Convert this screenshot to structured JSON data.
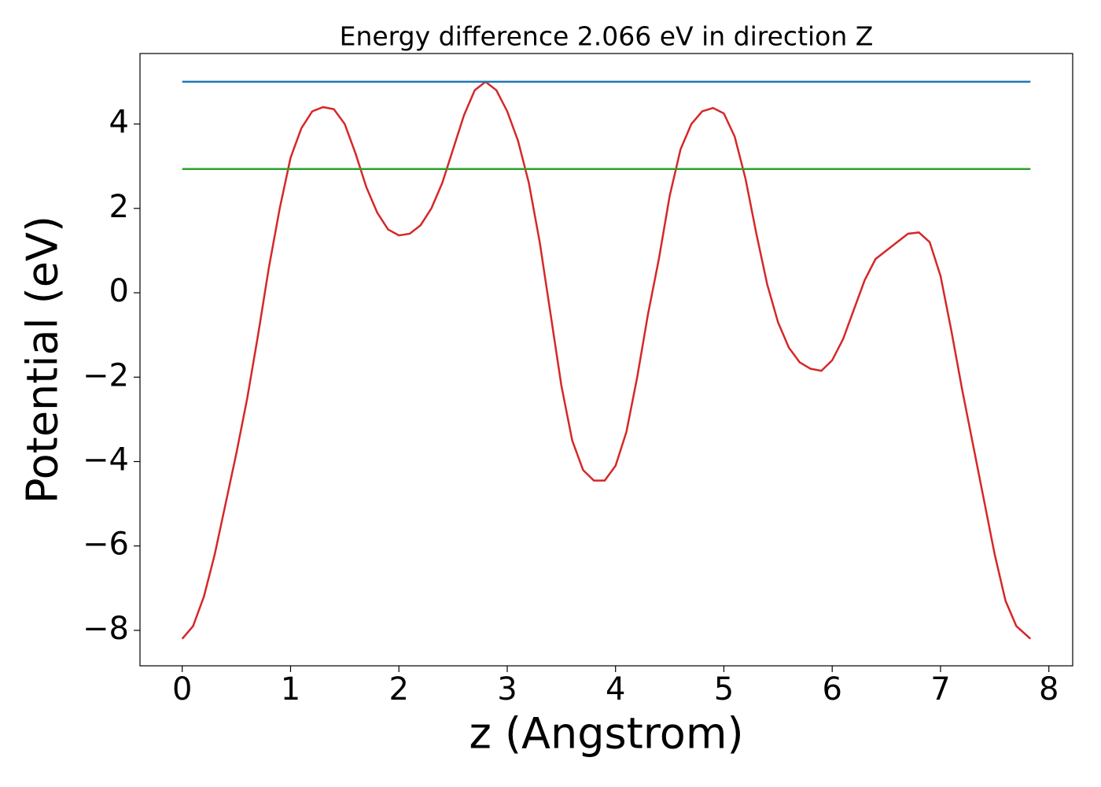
{
  "chart_data": {
    "type": "line",
    "title": "Energy difference 2.066 eV in direction Z",
    "xlabel": "z (Angstrom)",
    "ylabel": "Potential (eV)",
    "xlim": [
      -0.39,
      8.22
    ],
    "ylim": [
      -8.84,
      5.67
    ],
    "xticks": [
      0,
      1,
      2,
      3,
      4,
      5,
      6,
      7,
      8
    ],
    "yticks": [
      {
        "value": -8,
        "label": "−8"
      },
      {
        "value": -6,
        "label": "−6"
      },
      {
        "value": -4,
        "label": "−4"
      },
      {
        "value": -2,
        "label": "−2"
      },
      0,
      2,
      4
    ],
    "series": [
      {
        "color": "#d62728",
        "x": [
          0,
          0.1,
          0.2,
          0.3,
          0.4,
          0.5,
          0.6,
          0.7,
          0.8,
          0.9,
          1.0,
          1.1,
          1.2,
          1.3,
          1.4,
          1.5,
          1.6,
          1.7,
          1.8,
          1.9,
          2.0,
          2.1,
          2.2,
          2.3,
          2.4,
          2.5,
          2.6,
          2.7,
          2.8,
          2.9,
          3.0,
          3.1,
          3.2,
          3.3,
          3.4,
          3.5,
          3.6,
          3.7,
          3.8,
          3.9,
          4.0,
          4.1,
          4.2,
          4.3,
          4.4,
          4.5,
          4.6,
          4.7,
          4.8,
          4.9,
          5.0,
          5.1,
          5.2,
          5.3,
          5.4,
          5.5,
          5.6,
          5.7,
          5.8,
          5.9,
          6.0,
          6.1,
          6.2,
          6.3,
          6.4,
          6.5,
          6.6,
          6.7,
          6.8,
          6.9,
          7.0,
          7.1,
          7.2,
          7.3,
          7.4,
          7.5,
          7.6,
          7.7,
          7.83
        ],
        "values": [
          -8.2,
          -7.9,
          -7.2,
          -6.2,
          -5.0,
          -3.8,
          -2.5,
          -1.0,
          0.6,
          2.0,
          3.2,
          3.9,
          4.3,
          4.4,
          4.35,
          4.0,
          3.3,
          2.5,
          1.9,
          1.5,
          1.36,
          1.4,
          1.6,
          2.0,
          2.6,
          3.4,
          4.2,
          4.8,
          5.0,
          4.8,
          4.3,
          3.6,
          2.6,
          1.2,
          -0.5,
          -2.2,
          -3.5,
          -4.2,
          -4.45,
          -4.45,
          -4.1,
          -3.3,
          -2.0,
          -0.5,
          0.8,
          2.3,
          3.4,
          4.0,
          4.3,
          4.38,
          4.25,
          3.7,
          2.7,
          1.4,
          0.2,
          -0.7,
          -1.3,
          -1.65,
          -1.8,
          -1.85,
          -1.6,
          -1.1,
          -0.4,
          0.3,
          0.8,
          1.0,
          1.2,
          1.4,
          1.43,
          1.2,
          0.4,
          -0.9,
          -2.3,
          -3.6,
          -4.9,
          -6.2,
          -7.3,
          -7.9,
          -8.2
        ]
      },
      {
        "color": "#1f77b4",
        "x": [
          0,
          7.83
        ],
        "values": [
          5.0,
          5.0
        ]
      },
      {
        "color": "#2ca02c",
        "x": [
          0,
          7.83
        ],
        "values": [
          2.934,
          2.934
        ]
      }
    ]
  }
}
